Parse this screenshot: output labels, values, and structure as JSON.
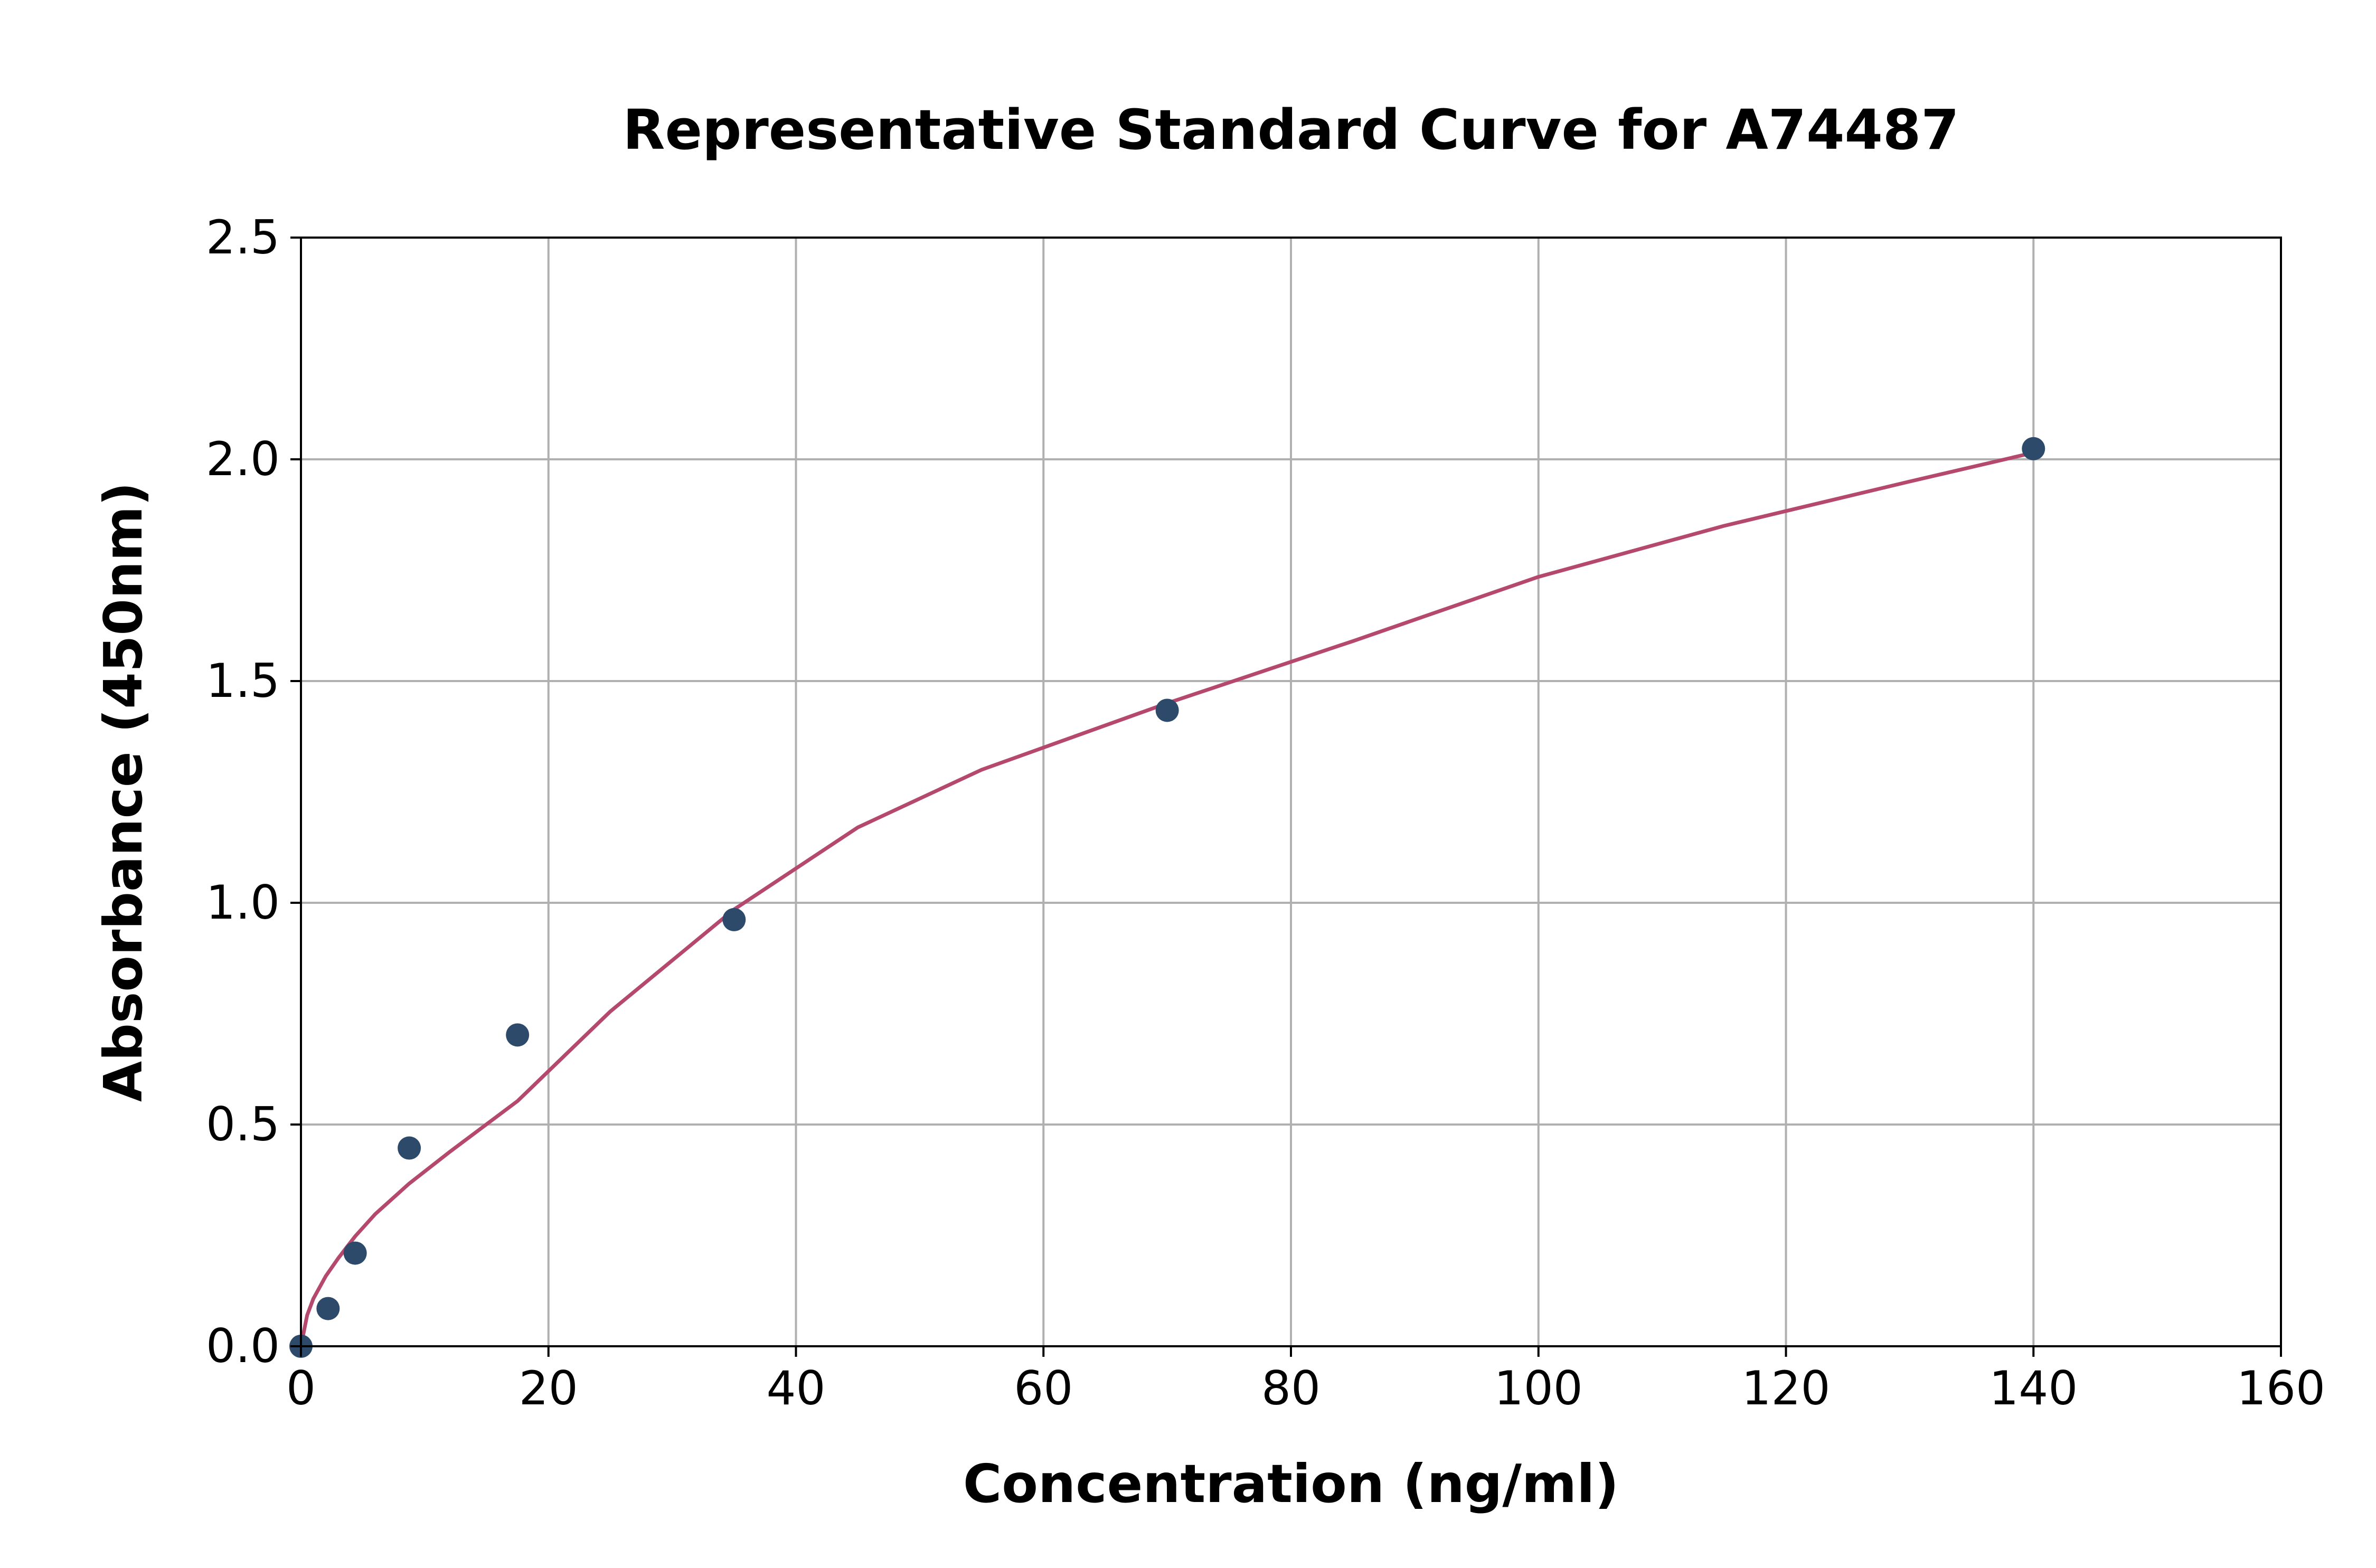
{
  "chart_data": {
    "type": "scatter",
    "title": "Representative Standard Curve for A74487",
    "xlabel": "Concentration (ng/ml)",
    "ylabel": "Absorbance (450nm)",
    "xlim": [
      0,
      160
    ],
    "ylim": [
      0,
      2.5
    ],
    "xticks": [
      "0",
      "20",
      "40",
      "60",
      "80",
      "100",
      "120",
      "140",
      "160"
    ],
    "yticks": [
      "0.0",
      "0.5",
      "1.0",
      "1.5",
      "2.0",
      "2.5"
    ],
    "grid": true,
    "series": [
      {
        "kind": "points",
        "color": "#2e4a6b",
        "x": [
          0,
          2.19,
          4.38,
          8.75,
          17.5,
          35,
          70,
          140
        ],
        "y": [
          0.0,
          0.085,
          0.21,
          0.447,
          0.702,
          0.962,
          1.434,
          2.024
        ]
      },
      {
        "kind": "fit-curve",
        "color": "#b5486d",
        "x": [
          0,
          0.5,
          1,
          2,
          3,
          4.38,
          6,
          8.75,
          12,
          17.5,
          25,
          35,
          45,
          55,
          70,
          85,
          100,
          115,
          130,
          140
        ],
        "y": [
          0.0,
          0.07,
          0.107,
          0.158,
          0.198,
          0.248,
          0.298,
          0.367,
          0.438,
          0.553,
          0.755,
          0.985,
          1.17,
          1.3,
          1.45,
          1.59,
          1.735,
          1.85,
          1.95,
          2.015
        ]
      }
    ]
  }
}
